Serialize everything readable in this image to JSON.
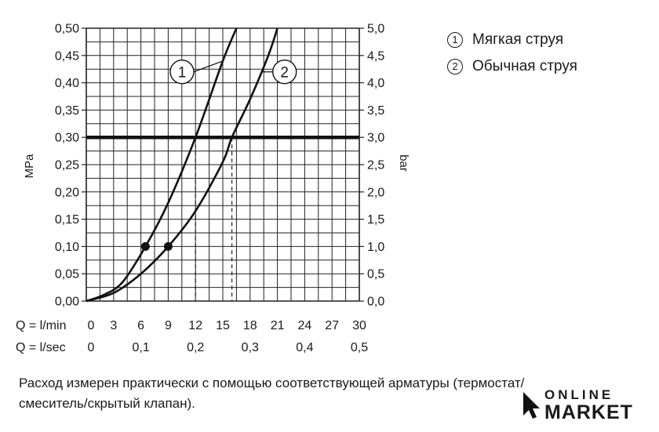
{
  "chart_data": {
    "type": "line",
    "ylabel": "MPa",
    "y2label": "bar",
    "ylim": [
      0,
      0.5
    ],
    "y2lim": [
      0,
      5.0
    ],
    "yticks": [
      "0,00",
      "0,05",
      "0,10",
      "0,15",
      "0,20",
      "0,25",
      "0,30",
      "0,35",
      "0,40",
      "0,45",
      "0,50"
    ],
    "y2ticks": [
      "0,0",
      "0,5",
      "1,0",
      "1,5",
      "2,0",
      "2,5",
      "3,0",
      "3,5",
      "4,0",
      "4,5",
      "5,0"
    ],
    "xlim": [
      0,
      30
    ],
    "x_axis_rows": [
      {
        "label": "Q = l/min",
        "ticks": [
          {
            "v": 0,
            "t": "0"
          },
          {
            "v": 3,
            "t": "3"
          },
          {
            "v": 6,
            "t": "6"
          },
          {
            "v": 9,
            "t": "9"
          },
          {
            "v": 12,
            "t": "12"
          },
          {
            "v": 15,
            "t": "15"
          },
          {
            "v": 18,
            "t": "18"
          },
          {
            "v": 21,
            "t": "21"
          },
          {
            "v": 24,
            "t": "24"
          },
          {
            "v": 27,
            "t": "27"
          },
          {
            "v": 30,
            "t": "30"
          }
        ]
      },
      {
        "label": "Q = l/sec",
        "ticks": [
          {
            "v": 0,
            "t": "0"
          },
          {
            "v": 6,
            "t": "0,1"
          },
          {
            "v": 12,
            "t": "0,2"
          },
          {
            "v": 18,
            "t": "0,3"
          },
          {
            "v": 24,
            "t": "0,4"
          },
          {
            "v": 30,
            "t": "0,5"
          }
        ]
      }
    ],
    "grid": true,
    "series": [
      {
        "name": "1",
        "x": [
          0,
          2,
          4,
          6.5,
          9,
          12,
          15,
          16.5
        ],
        "y": [
          0,
          0.012,
          0.035,
          0.1,
          0.18,
          0.3,
          0.44,
          0.5
        ]
      },
      {
        "name": "2",
        "x": [
          0,
          3,
          6,
          9,
          12,
          15,
          16,
          18,
          20,
          21
        ],
        "y": [
          0,
          0.015,
          0.05,
          0.1,
          0.165,
          0.255,
          0.3,
          0.37,
          0.45,
          0.5
        ]
      }
    ],
    "reference_line": {
      "y": 0.3
    },
    "drop_lines": [
      {
        "x": 12,
        "y": 0.3
      },
      {
        "x": 16,
        "y": 0.3
      }
    ],
    "markers": [
      {
        "x": 6.5,
        "y": 0.1
      },
      {
        "x": 9,
        "y": 0.1
      }
    ],
    "callouts": [
      {
        "label": "1",
        "series": 0,
        "x": 15,
        "y": 0.44
      },
      {
        "label": "2",
        "series": 1,
        "x": 19.2,
        "y": 0.42
      }
    ]
  },
  "legend": [
    {
      "num": "1",
      "text": "Мягкая струя"
    },
    {
      "num": "2",
      "text": "Обычная струя"
    }
  ],
  "footnote": {
    "line1": "Расход измерен практически с помощью соответствующей арматуры (термостат/",
    "line2": "смеситель/скрытый клапан)."
  },
  "logo": {
    "top": "ONLINE",
    "bottom": "MARKET"
  }
}
